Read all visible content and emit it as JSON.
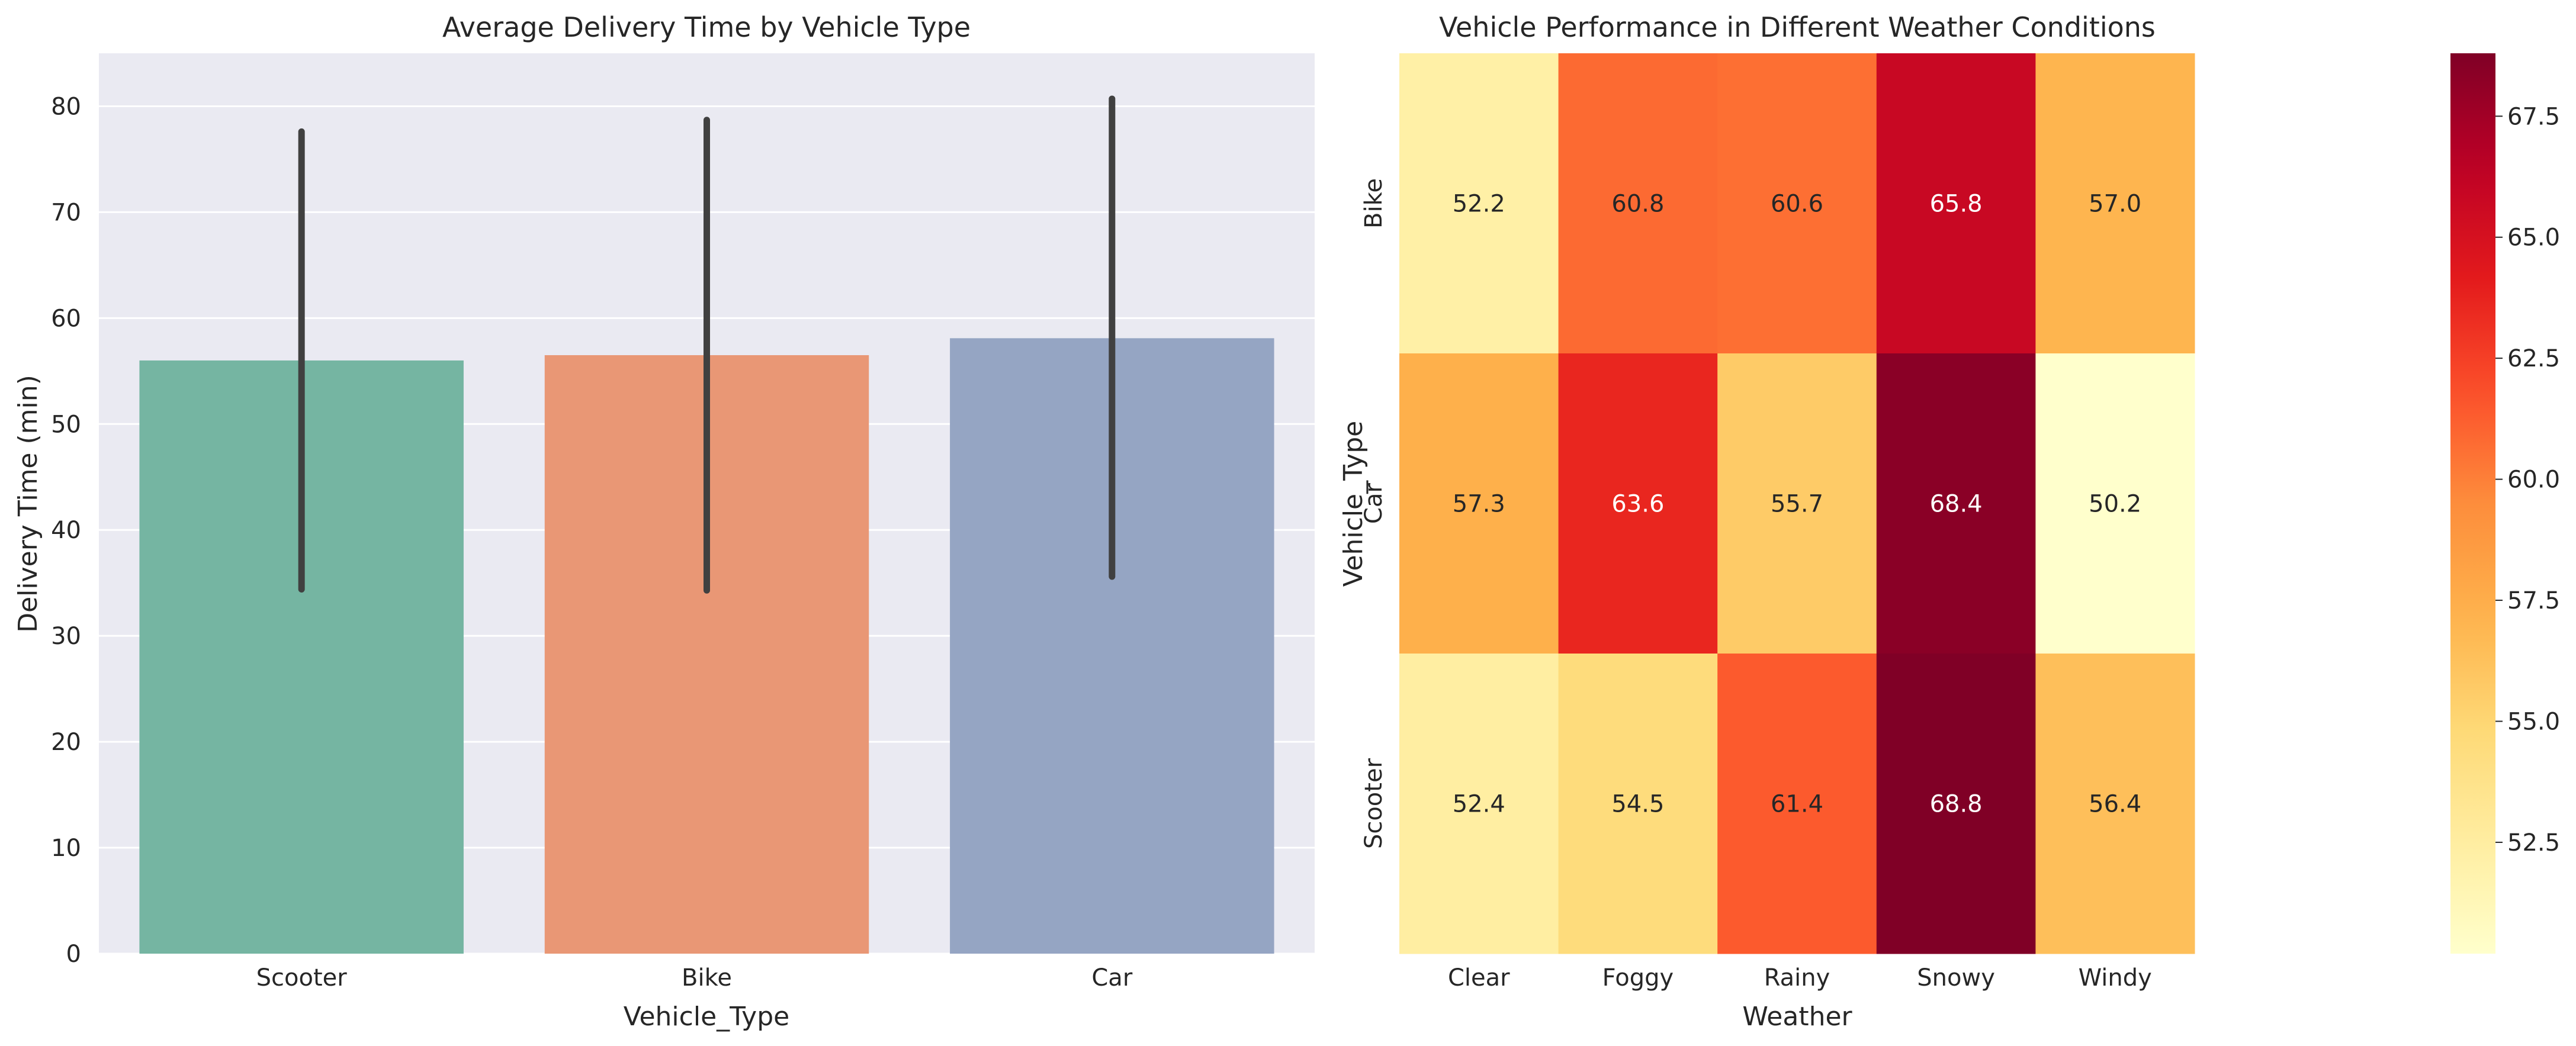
{
  "chart_data": [
    {
      "type": "bar",
      "title": "Average Delivery Time by Vehicle Type",
      "xlabel": "Vehicle_Type",
      "ylabel": "Delivery Time (min)",
      "categories": [
        "Scooter",
        "Bike",
        "Car"
      ],
      "values": [
        56.0,
        56.5,
        58.1
      ],
      "error_bars": [
        [
          34.4,
          77.6
        ],
        [
          34.3,
          78.7
        ],
        [
          35.6,
          80.7
        ]
      ],
      "colors": [
        "#75b5a2",
        "#e99775",
        "#95a5c3"
      ],
      "ylim": [
        0,
        85
      ],
      "yticks": [
        0,
        10,
        20,
        30,
        40,
        50,
        60,
        70,
        80
      ],
      "grid": true,
      "background": "#eaeaf2"
    },
    {
      "type": "heatmap",
      "title": "Vehicle Performance in Different Weather Conditions",
      "xlabel": "Weather",
      "ylabel": "Vehicle_Type",
      "x": [
        "Clear",
        "Foggy",
        "Rainy",
        "Snowy",
        "Windy"
      ],
      "y": [
        "Bike",
        "Car",
        "Scooter"
      ],
      "values": [
        [
          52.2,
          60.8,
          60.6,
          65.8,
          57.0
        ],
        [
          57.3,
          63.6,
          55.7,
          68.4,
          50.2
        ],
        [
          52.4,
          54.5,
          61.4,
          68.8,
          56.4
        ]
      ],
      "colormap": "YlOrRd",
      "vmin": 50.2,
      "vmax": 68.8,
      "colorbar_ticks": [
        52.5,
        55.0,
        57.5,
        60.0,
        62.5,
        65.0,
        67.5
      ]
    }
  ]
}
